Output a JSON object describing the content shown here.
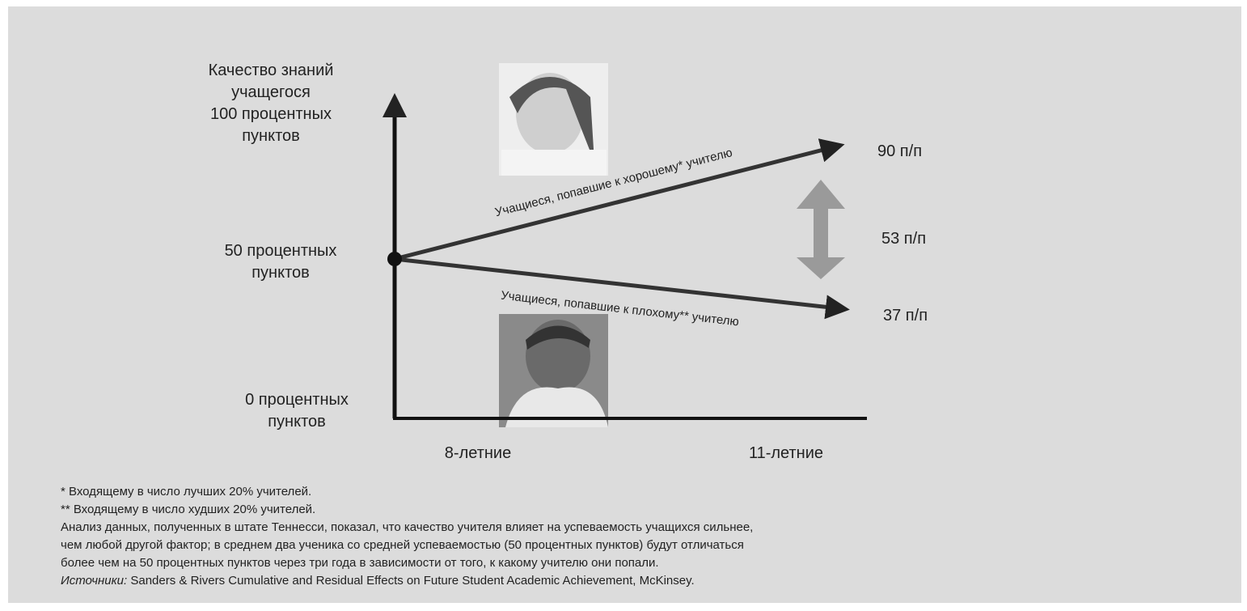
{
  "y_axis": {
    "title": [
      "Качество знаний",
      "учащегося",
      "100 процентных",
      "пунктов"
    ],
    "middle": [
      "50 процентных",
      "пунктов"
    ],
    "bottom": [
      "0 процентных",
      "пунктов"
    ]
  },
  "x_axis": {
    "labels": [
      "8-летние",
      "11-летние"
    ]
  },
  "arrows": [
    {
      "label": "Учащиеся, попавшие к хорошему* учителю",
      "end": "90 п/п"
    },
    {
      "label": "Учащиеся, попавшие к плохому** учителю",
      "end": "37 п/п"
    }
  ],
  "gap": "53 п/п",
  "notes": [
    "* Входящему в число лучших 20% учителей.",
    "** Входящему в число худших 20% учителей.",
    "Анализ данных, полученных в штате Теннесси, показал, что качество учителя влияет на успеваемость учащихся сильнее,",
    "чем любой другой фактор; в среднем два ученика со средней успеваемостью (50 процентных пунктов) будут отличаться",
    "более чем на 50 процентных пунктов через три года в зависимости от того, к какому учителю они попали."
  ],
  "source": {
    "label": "Источники:",
    "text": " Sanders & Rivers Cumulative and Residual Effects on Future Student Academic Achievement, McKinsey."
  }
}
